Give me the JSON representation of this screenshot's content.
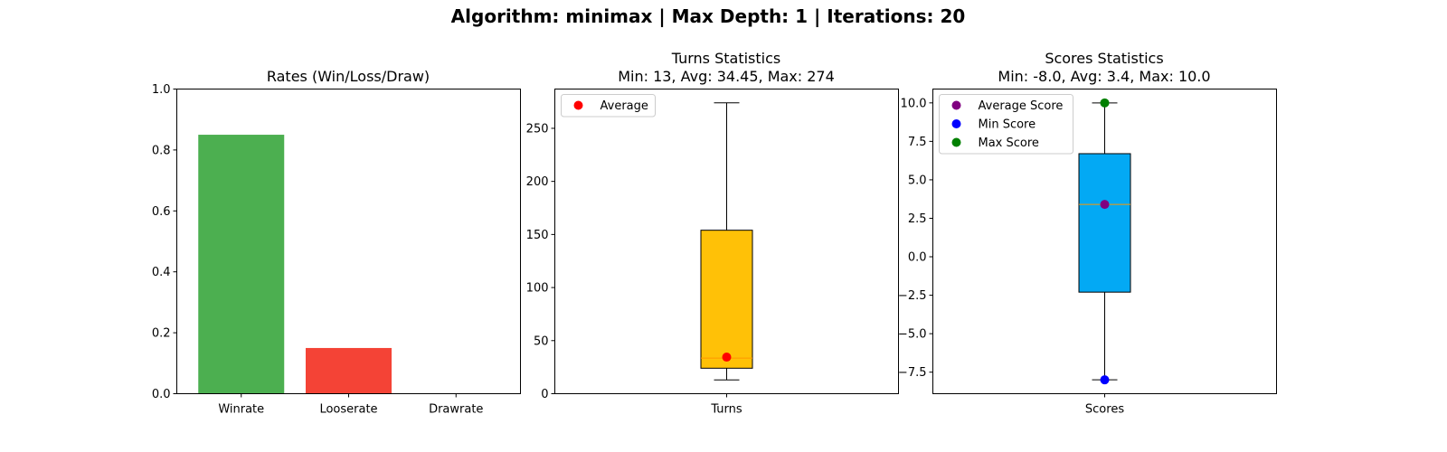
{
  "figure": {
    "suptitle": "Algorithm: minimax | Max Depth: 1 | Iterations: 20"
  },
  "chart_data": [
    {
      "type": "bar",
      "title": "Rates (Win/Loss/Draw)",
      "categories": [
        "Winrate",
        "Looserate",
        "Drawrate"
      ],
      "values": [
        0.85,
        0.15,
        0.0
      ],
      "colors": [
        "#4caf50",
        "#f44336",
        "#2196f3"
      ],
      "ylim": [
        0,
        1.0
      ],
      "yticks": [
        0.0,
        0.2,
        0.4,
        0.6,
        0.8,
        1.0
      ],
      "ytick_labels": [
        "0.0",
        "0.2",
        "0.4",
        "0.6",
        "0.8",
        "1.0"
      ],
      "grid": false
    },
    {
      "type": "box",
      "title": "Turns Statistics",
      "subtitle": "Min: 13, Avg: 34.45, Max: 274",
      "category": "Turns",
      "box_color": "#ffc107",
      "median_color": "#ff9800",
      "whisker_low": 13,
      "q1": 24,
      "median": 33.5,
      "q3": 154,
      "whisker_high": 274,
      "ylim": [
        0,
        287
      ],
      "yticks": [
        0,
        50,
        100,
        150,
        200,
        250
      ],
      "ytick_labels": [
        "0",
        "50",
        "100",
        "150",
        "200",
        "250"
      ],
      "markers": [
        {
          "name": "Average",
          "value": 34.45,
          "color": "#ff0000"
        }
      ],
      "legend_position": "upper-left",
      "grid": false
    },
    {
      "type": "box",
      "title": "Scores Statistics",
      "subtitle": "Min: -8.0, Avg: 3.4, Max: 10.0",
      "category": "Scores",
      "box_color": "#03a9f4",
      "median_color": "#ff9800",
      "whisker_low": -8.0,
      "q1": -2.3,
      "median": 3.4,
      "q3": 6.7,
      "whisker_high": 10.0,
      "ylim": [
        -8.9,
        10.9
      ],
      "yticks": [
        -7.5,
        -5.0,
        -2.5,
        0.0,
        2.5,
        5.0,
        7.5,
        10.0
      ],
      "ytick_labels": [
        "−7.5",
        "−5.0",
        "−2.5",
        "0.0",
        "2.5",
        "5.0",
        "7.5",
        "10.0"
      ],
      "markers": [
        {
          "name": "Average Score",
          "value": 3.4,
          "color": "#800080"
        },
        {
          "name": "Min Score",
          "value": -8.0,
          "color": "#0000ff"
        },
        {
          "name": "Max Score",
          "value": 10.0,
          "color": "#008000"
        }
      ],
      "legend_position": "upper-left",
      "grid": false
    }
  ]
}
